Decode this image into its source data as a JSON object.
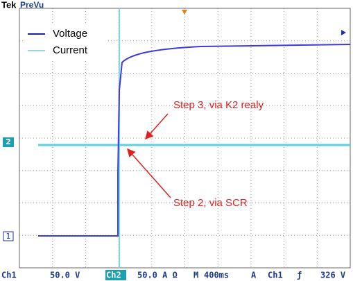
{
  "header": {
    "brand": "Tek",
    "mode": "PreVu"
  },
  "legend": [
    "Voltage",
    "Current"
  ],
  "markers": {
    "ch2": "2",
    "ch1": "1"
  },
  "annotations": [
    "Step 3, via K2 realy",
    "Step 2, via SCR"
  ],
  "status_bar": [
    "Ch1",
    "50.0 V",
    "Ch2",
    "50.0 A Ω",
    "M",
    "400ms",
    "A",
    "Ch1",
    "ƒ",
    "326 V"
  ]
}
